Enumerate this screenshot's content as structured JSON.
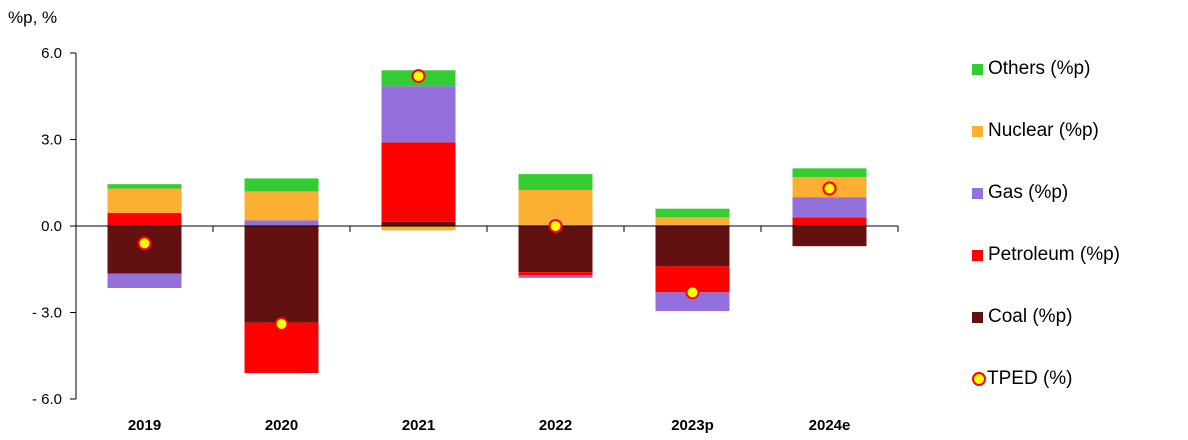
{
  "chart_data": {
    "type": "bar",
    "stacked": true,
    "unit_label": "%p, %",
    "categories": [
      "2019",
      "2020",
      "2021",
      "2022",
      "2023p",
      "2024e"
    ],
    "y_ticks": [
      "6.0",
      "3.0",
      "0.0",
      "- 3.0",
      "- 6.0"
    ],
    "ylim": [
      -6,
      6
    ],
    "series": [
      {
        "name": "Coal (%p)",
        "color": "#631010",
        "values": [
          -1.65,
          -3.35,
          0.15,
          -1.6,
          -1.4,
          -0.7
        ]
      },
      {
        "name": "Petroleum (%p)",
        "color": "#ff0000",
        "values": [
          0.45,
          -1.75,
          2.75,
          -0.1,
          -0.9,
          0.3
        ]
      },
      {
        "name": "Gas (%p)",
        "color": "#9370db",
        "values": [
          -0.5,
          0.2,
          1.95,
          -0.1,
          -0.65,
          0.7
        ]
      },
      {
        "name": "Nuclear (%p)",
        "color": "#fbb034",
        "values": [
          0.85,
          1.0,
          -0.15,
          1.25,
          0.3,
          0.7
        ]
      },
      {
        "name": "Others (%p)",
        "color": "#33cc33",
        "values": [
          0.15,
          0.45,
          0.55,
          0.55,
          0.3,
          0.3
        ]
      }
    ],
    "line_series": {
      "name": "TPED (%)",
      "values": [
        -0.6,
        -3.4,
        5.2,
        0.0,
        -2.3,
        1.3
      ]
    },
    "legend_position": "right",
    "grid": false
  }
}
